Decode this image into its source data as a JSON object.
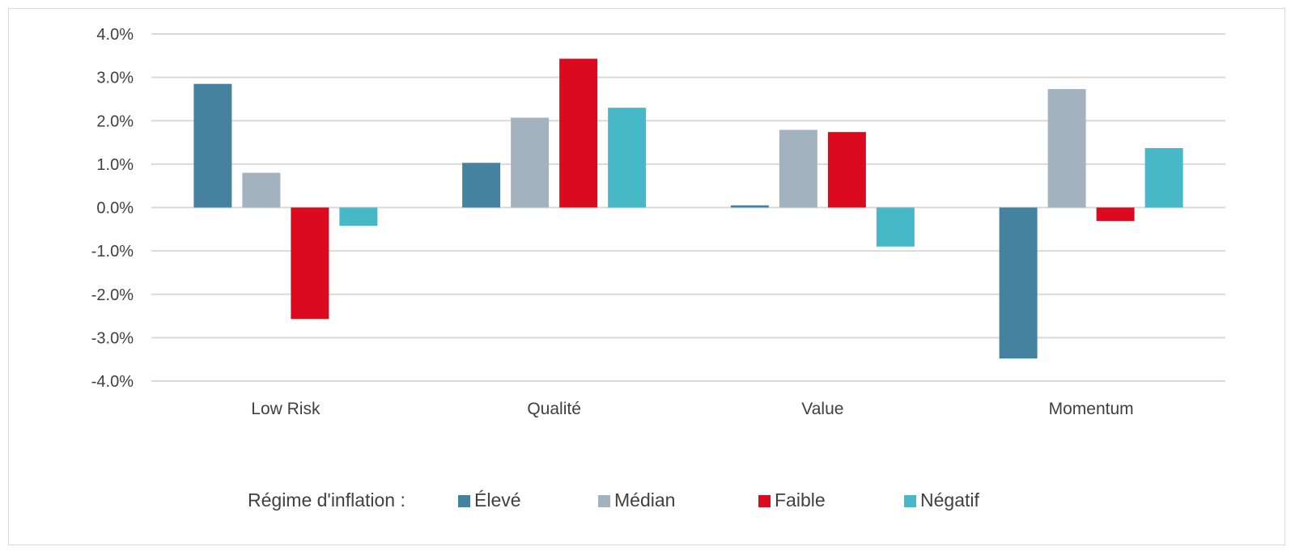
{
  "chart_data": {
    "type": "bar",
    "categories": [
      "Low Risk",
      "Qualité",
      "Value",
      "Momentum"
    ],
    "series": [
      {
        "name": "Élevé",
        "color": "#44829f",
        "values": [
          2.85,
          1.03,
          0.05,
          -3.48
        ]
      },
      {
        "name": "Médian",
        "color": "#a2b3bf",
        "values": [
          0.8,
          2.07,
          1.79,
          2.73
        ]
      },
      {
        "name": "Faible",
        "color": "#dc0a1e",
        "values": [
          -2.57,
          3.43,
          1.74,
          -0.31
        ]
      },
      {
        "name": "Négatif",
        "color": "#46b8c8",
        "values": [
          -0.42,
          2.3,
          -0.9,
          1.37
        ]
      }
    ],
    "ylim": [
      -4.0,
      4.0
    ],
    "yticks": [
      4.0,
      3.0,
      2.0,
      1.0,
      0.0,
      -1.0,
      -2.0,
      -3.0,
      -4.0
    ],
    "ytick_labels": [
      "4.0%",
      "3.0%",
      "2.0%",
      "1.0%",
      "0.0%",
      "-1.0%",
      "-2.0%",
      "-3.0%",
      "-4.0%"
    ],
    "grid": true,
    "legend_position": "bottom",
    "legend_title": "Régime d'inflation :",
    "title": "",
    "xlabel": "",
    "ylabel": ""
  }
}
